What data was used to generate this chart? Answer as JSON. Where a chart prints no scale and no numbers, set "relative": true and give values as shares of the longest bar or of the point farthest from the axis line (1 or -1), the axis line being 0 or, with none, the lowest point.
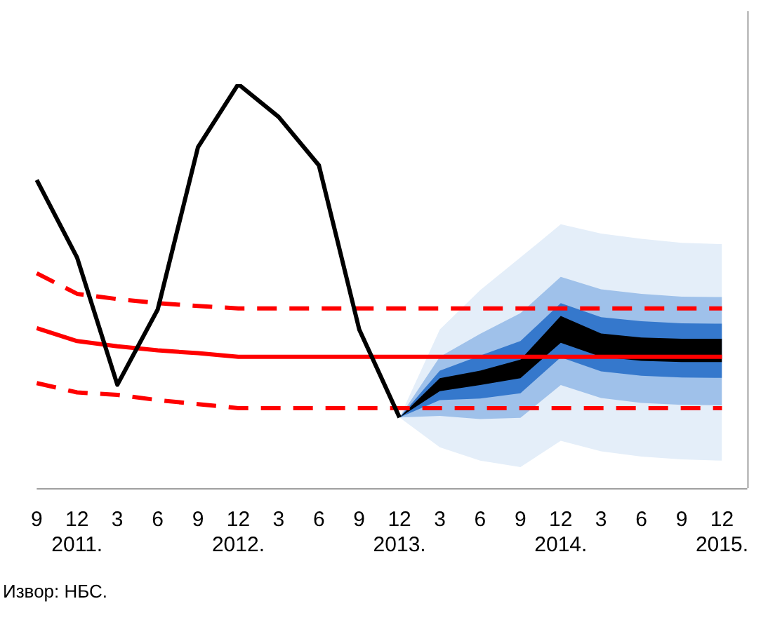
{
  "chart_data": {
    "type": "line",
    "relative": true,
    "grid": false,
    "legend": false,
    "categories": [
      "9",
      "12 2011.",
      "3",
      "6",
      "9",
      "12 2012.",
      "3",
      "6",
      "9",
      "12 2013.",
      "3",
      "6",
      "9",
      "12 2014.",
      "3",
      "6",
      "9",
      "12 2015."
    ],
    "series": [
      {
        "color": "#e4eef9",
        "values": [
          null,
          null,
          null,
          null,
          null,
          null,
          null,
          null,
          null,
          null,
          null,
          null,
          null,
          null,
          null,
          null,
          null,
          null
        ],
        "lower": [
          null,
          null,
          null,
          null,
          null,
          null,
          null,
          null,
          null,
          0.175,
          0.101,
          0.068,
          0.052,
          0.117,
          0.091,
          0.078,
          0.071,
          0.068
        ],
        "upper": [
          null,
          null,
          null,
          null,
          null,
          null,
          null,
          null,
          null,
          0.175,
          0.393,
          0.49,
          0.571,
          0.653,
          0.63,
          0.617,
          0.607,
          0.604
        ]
      },
      {
        "color": "#9fc1ea",
        "values": [
          null,
          null,
          null,
          null,
          null,
          null,
          null,
          null,
          null,
          null,
          null,
          null,
          null,
          null,
          null,
          null,
          null,
          null
        ],
        "lower": [
          null,
          null,
          null,
          null,
          null,
          null,
          null,
          null,
          null,
          0.175,
          0.179,
          0.171,
          0.174,
          0.255,
          0.223,
          0.211,
          0.206,
          0.205
        ],
        "upper": [
          null,
          null,
          null,
          null,
          null,
          null,
          null,
          null,
          null,
          0.175,
          0.325,
          0.382,
          0.433,
          0.523,
          0.492,
          0.481,
          0.474,
          0.473
        ]
      },
      {
        "color": "#3578cc",
        "values": [
          null,
          null,
          null,
          null,
          null,
          null,
          null,
          null,
          null,
          null,
          null,
          null,
          null,
          null,
          null,
          null,
          null,
          null
        ],
        "lower": [
          null,
          null,
          null,
          null,
          null,
          null,
          null,
          null,
          null,
          0.175,
          0.218,
          0.222,
          0.235,
          0.324,
          0.289,
          0.278,
          0.274,
          0.273
        ],
        "upper": [
          null,
          null,
          null,
          null,
          null,
          null,
          null,
          null,
          null,
          0.175,
          0.291,
          0.328,
          0.364,
          0.458,
          0.423,
          0.413,
          0.408,
          0.407
        ]
      },
      {
        "color": "#000000",
        "values": [
          null,
          null,
          null,
          null,
          null,
          null,
          null,
          null,
          null,
          null,
          null,
          null,
          null,
          null,
          null,
          null,
          null,
          null
        ],
        "lower": [
          null,
          null,
          null,
          null,
          null,
          null,
          null,
          null,
          null,
          0.175,
          0.24,
          0.255,
          0.272,
          0.36,
          0.325,
          0.315,
          0.312,
          0.312
        ],
        "upper": [
          null,
          null,
          null,
          null,
          null,
          null,
          null,
          null,
          null,
          0.175,
          0.272,
          0.291,
          0.318,
          0.426,
          0.383,
          0.373,
          0.37,
          0.37
        ]
      },
      {
        "color": "#ff0000",
        "line_style": "dashed",
        "values": [
          0.532,
          0.481,
          0.468,
          0.458,
          0.451,
          0.445,
          0.445,
          0.445,
          0.445,
          0.445,
          0.445,
          0.445,
          0.445,
          0.445,
          0.445,
          0.445,
          0.445,
          0.445
        ]
      },
      {
        "color": "#ff0000",
        "line_style": "dashed",
        "values": [
          0.26,
          0.237,
          0.231,
          0.218,
          0.208,
          0.198,
          0.198,
          0.198,
          0.198,
          0.198,
          0.198,
          0.198,
          0.198,
          0.198,
          0.198,
          0.198,
          0.198,
          0.198
        ]
      },
      {
        "color": "#ff0000",
        "line_style": "solid",
        "values": [
          0.396,
          0.364,
          0.351,
          0.341,
          0.334,
          0.325,
          0.325,
          0.325,
          0.325,
          0.325,
          0.325,
          0.325,
          0.325,
          0.325,
          0.325,
          0.325,
          0.325,
          0.325
        ]
      },
      {
        "color": "#000000",
        "line_style": "solid",
        "values": [
          0.763,
          0.571,
          0.256,
          0.442,
          0.844,
          1,
          0.919,
          0.799,
          0.393,
          0.175,
          null,
          null,
          null,
          null,
          null,
          null,
          null,
          null
        ]
      }
    ],
    "annotations": [
      "Извор: НБС."
    ]
  }
}
